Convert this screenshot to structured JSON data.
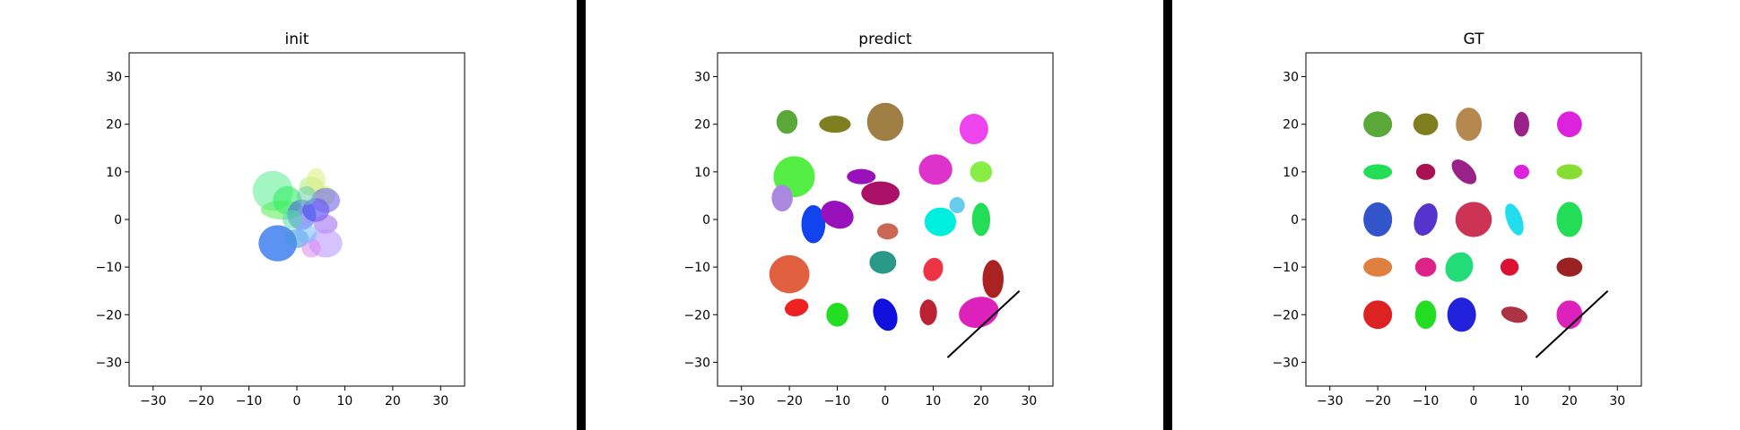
{
  "chart_data": [
    {
      "type": "scatter",
      "title": "init",
      "xlim": [
        -35,
        35
      ],
      "ylim": [
        -35,
        35
      ],
      "xticks": [
        -30,
        -20,
        -10,
        0,
        10,
        20,
        30
      ],
      "yticks": [
        -30,
        -20,
        -10,
        0,
        10,
        20,
        30
      ],
      "grid": false,
      "ellipses": [
        {
          "cx": -5,
          "cy": 6,
          "rx": 4.2,
          "ry": 4.2,
          "angle": 0,
          "color": "#66ee99",
          "opacity": 0.6
        },
        {
          "cx": -3,
          "cy": 2,
          "rx": 4.5,
          "ry": 2.0,
          "angle": 0,
          "color": "#55ee55",
          "opacity": 0.55
        },
        {
          "cx": -2,
          "cy": 4,
          "rx": 3.0,
          "ry": 3.0,
          "angle": 0,
          "color": "#33ee66",
          "opacity": 0.6
        },
        {
          "cx": 3,
          "cy": 7,
          "rx": 2.5,
          "ry": 2.0,
          "angle": 0,
          "color": "#aaee77",
          "opacity": 0.55
        },
        {
          "cx": 4,
          "cy": 8,
          "rx": 2.0,
          "ry": 2.8,
          "angle": 0,
          "color": "#ddee88",
          "opacity": 0.6
        },
        {
          "cx": 6,
          "cy": 5,
          "rx": 2.0,
          "ry": 2.0,
          "angle": 0,
          "color": "#bbee66",
          "opacity": 0.55
        },
        {
          "cx": -4,
          "cy": -5,
          "rx": 4.0,
          "ry": 3.8,
          "angle": 0,
          "color": "#3377ee",
          "opacity": 0.8
        },
        {
          "cx": 0,
          "cy": -4,
          "rx": 2.5,
          "ry": 2.0,
          "angle": 0,
          "color": "#4499dd",
          "opacity": 0.6
        },
        {
          "cx": 1,
          "cy": 1,
          "rx": 3.0,
          "ry": 3.2,
          "angle": 0,
          "color": "#5566ee",
          "opacity": 0.6
        },
        {
          "cx": 4,
          "cy": 2,
          "rx": 2.8,
          "ry": 2.5,
          "angle": 0,
          "color": "#4444ee",
          "opacity": 0.6
        },
        {
          "cx": 6,
          "cy": 4,
          "rx": 3.0,
          "ry": 2.6,
          "angle": 0,
          "color": "#7766ee",
          "opacity": 0.6
        },
        {
          "cx": 6,
          "cy": -1,
          "rx": 2.5,
          "ry": 2.0,
          "angle": 0,
          "color": "#9966ee",
          "opacity": 0.55
        },
        {
          "cx": 6,
          "cy": -5,
          "rx": 3.5,
          "ry": 3.0,
          "angle": 0,
          "color": "#bb99ff",
          "opacity": 0.6
        },
        {
          "cx": 3,
          "cy": -6,
          "rx": 2.0,
          "ry": 2.0,
          "angle": 0,
          "color": "#dd88ee",
          "opacity": 0.55
        },
        {
          "cx": 2,
          "cy": -3,
          "rx": 2.2,
          "ry": 2.0,
          "angle": 0,
          "color": "#77bbff",
          "opacity": 0.55
        },
        {
          "cx": -1,
          "cy": 0,
          "rx": 2.0,
          "ry": 2.0,
          "angle": 0,
          "color": "#55ddaa",
          "opacity": 0.55
        },
        {
          "cx": 2,
          "cy": 5,
          "rx": 2.0,
          "ry": 2.0,
          "angle": 0,
          "color": "#66ccaa",
          "opacity": 0.5
        }
      ]
    },
    {
      "type": "scatter",
      "title": "predict",
      "xlim": [
        -35,
        35
      ],
      "ylim": [
        -35,
        35
      ],
      "xticks": [
        -30,
        -20,
        -10,
        0,
        10,
        20,
        30
      ],
      "yticks": [
        -30,
        -20,
        -10,
        0,
        10,
        20,
        30
      ],
      "grid": false,
      "line": {
        "x": [
          13,
          28
        ],
        "y": [
          -29,
          -15
        ]
      },
      "ellipses": [
        {
          "cx": -20.5,
          "cy": 20.5,
          "rx": 2.2,
          "ry": 2.5,
          "angle": 0,
          "color": "#5aa83a"
        },
        {
          "cx": -10.5,
          "cy": 20,
          "rx": 3.3,
          "ry": 1.8,
          "angle": 0,
          "color": "#7f7f22"
        },
        {
          "cx": 0,
          "cy": 20.5,
          "rx": 3.8,
          "ry": 4.0,
          "angle": 0,
          "color": "#9e7e42"
        },
        {
          "cx": 18.5,
          "cy": 19,
          "rx": 3.0,
          "ry": 3.2,
          "angle": 0,
          "color": "#ee44ee"
        },
        {
          "cx": -19,
          "cy": 9,
          "rx": 4.3,
          "ry": 4.3,
          "angle": 0,
          "color": "#55ee44"
        },
        {
          "cx": -21.5,
          "cy": 4.5,
          "rx": 2.2,
          "ry": 2.8,
          "angle": 0,
          "color": "#aa88dd"
        },
        {
          "cx": -5,
          "cy": 9,
          "rx": 3.0,
          "ry": 1.6,
          "angle": 0,
          "color": "#9911bb"
        },
        {
          "cx": -1,
          "cy": 5.5,
          "rx": 4.0,
          "ry": 2.5,
          "angle": 0,
          "color": "#aa1166"
        },
        {
          "cx": 10.5,
          "cy": 10.5,
          "rx": 3.5,
          "ry": 3.2,
          "angle": 0,
          "color": "#dd33cc"
        },
        {
          "cx": 20,
          "cy": 10,
          "rx": 2.3,
          "ry": 2.2,
          "angle": 0,
          "color": "#88ee44"
        },
        {
          "cx": -15,
          "cy": -1,
          "rx": 2.5,
          "ry": 4.0,
          "angle": 0,
          "color": "#1144ee"
        },
        {
          "cx": -10,
          "cy": 1,
          "rx": 3.5,
          "ry": 2.8,
          "angle": -25,
          "color": "#9911bb"
        },
        {
          "cx": 15,
          "cy": 3,
          "rx": 1.6,
          "ry": 1.7,
          "angle": 0,
          "color": "#66ccee"
        },
        {
          "cx": 11.5,
          "cy": -0.5,
          "rx": 3.3,
          "ry": 3.0,
          "angle": 0,
          "color": "#00eedd"
        },
        {
          "cx": 20,
          "cy": 0,
          "rx": 1.9,
          "ry": 3.5,
          "angle": 0,
          "color": "#22dd55"
        },
        {
          "cx": 0.5,
          "cy": -2.5,
          "rx": 2.2,
          "ry": 1.7,
          "angle": 0,
          "color": "#cc6655"
        },
        {
          "cx": -20,
          "cy": -11.5,
          "rx": 4.2,
          "ry": 4.0,
          "angle": 0,
          "color": "#e06040"
        },
        {
          "cx": -0.5,
          "cy": -9,
          "rx": 2.8,
          "ry": 2.4,
          "angle": 0,
          "color": "#2a9988"
        },
        {
          "cx": 10,
          "cy": -10.5,
          "rx": 2.0,
          "ry": 2.5,
          "angle": -20,
          "color": "#ee3344"
        },
        {
          "cx": 22.5,
          "cy": -12.5,
          "rx": 2.2,
          "ry": 4.0,
          "angle": 0,
          "color": "#aa2222"
        },
        {
          "cx": -18.5,
          "cy": -18.5,
          "rx": 2.5,
          "ry": 1.8,
          "angle": 15,
          "color": "#ee2222"
        },
        {
          "cx": -10,
          "cy": -20,
          "rx": 2.3,
          "ry": 2.5,
          "angle": 0,
          "color": "#22dd22"
        },
        {
          "cx": 0,
          "cy": -20,
          "rx": 2.4,
          "ry": 3.5,
          "angle": 20,
          "color": "#1111dd"
        },
        {
          "cx": 9,
          "cy": -19.5,
          "rx": 1.8,
          "ry": 2.7,
          "angle": 0,
          "color": "#bb2233"
        },
        {
          "cx": 19.5,
          "cy": -19.5,
          "rx": 4.2,
          "ry": 3.2,
          "angle": 15,
          "color": "#dd22bb"
        }
      ]
    },
    {
      "type": "scatter",
      "title": "GT",
      "xlim": [
        -35,
        35
      ],
      "ylim": [
        -35,
        35
      ],
      "xticks": [
        -30,
        -20,
        -10,
        0,
        10,
        20,
        30
      ],
      "yticks": [
        -30,
        -20,
        -10,
        0,
        10,
        20,
        30
      ],
      "grid": false,
      "line": {
        "x": [
          13,
          28
        ],
        "y": [
          -29,
          -15
        ]
      },
      "ellipses": [
        {
          "cx": -20,
          "cy": 20,
          "rx": 3.0,
          "ry": 2.7,
          "angle": 0,
          "color": "#5aa83a"
        },
        {
          "cx": -10,
          "cy": 20,
          "rx": 2.6,
          "ry": 2.3,
          "angle": 0,
          "color": "#7f7f22"
        },
        {
          "cx": -1,
          "cy": 20,
          "rx": 2.7,
          "ry": 3.5,
          "angle": 0,
          "color": "#b58850"
        },
        {
          "cx": 10,
          "cy": 20,
          "rx": 1.6,
          "ry": 2.6,
          "angle": 0,
          "color": "#992288"
        },
        {
          "cx": 20,
          "cy": 20,
          "rx": 2.6,
          "ry": 2.7,
          "angle": 0,
          "color": "#dd22dd"
        },
        {
          "cx": -20,
          "cy": 10,
          "rx": 3.0,
          "ry": 1.6,
          "angle": 0,
          "color": "#22dd55"
        },
        {
          "cx": -10,
          "cy": 10,
          "rx": 2.0,
          "ry": 1.7,
          "angle": 0,
          "color": "#aa1155"
        },
        {
          "cx": -2,
          "cy": 10,
          "rx": 1.8,
          "ry": 3.2,
          "angle": 45,
          "color": "#992288"
        },
        {
          "cx": 10,
          "cy": 10,
          "rx": 1.6,
          "ry": 1.5,
          "angle": 0,
          "color": "#dd22dd"
        },
        {
          "cx": 20,
          "cy": 10,
          "rx": 2.7,
          "ry": 1.6,
          "angle": 0,
          "color": "#88dd33"
        },
        {
          "cx": -20,
          "cy": 0,
          "rx": 3.0,
          "ry": 3.6,
          "angle": 0,
          "color": "#3355cc"
        },
        {
          "cx": -10,
          "cy": 0,
          "rx": 2.3,
          "ry": 3.5,
          "angle": -20,
          "color": "#5533cc"
        },
        {
          "cx": 0,
          "cy": 0,
          "rx": 3.8,
          "ry": 3.7,
          "angle": 0,
          "color": "#cc3355"
        },
        {
          "cx": 8.5,
          "cy": 0,
          "rx": 1.6,
          "ry": 3.5,
          "angle": 20,
          "color": "#22ddee"
        },
        {
          "cx": 20,
          "cy": 0,
          "rx": 2.7,
          "ry": 3.7,
          "angle": 0,
          "color": "#22dd55"
        },
        {
          "cx": -20,
          "cy": -10,
          "rx": 3.0,
          "ry": 2.0,
          "angle": 0,
          "color": "#e08040"
        },
        {
          "cx": -10,
          "cy": -10,
          "rx": 2.2,
          "ry": 2.0,
          "angle": 0,
          "color": "#dd2288"
        },
        {
          "cx": -3,
          "cy": -10,
          "rx": 2.8,
          "ry": 3.2,
          "angle": -30,
          "color": "#22dd77"
        },
        {
          "cx": 7.5,
          "cy": -10,
          "rx": 1.9,
          "ry": 1.8,
          "angle": 0,
          "color": "#dd1133"
        },
        {
          "cx": 20,
          "cy": -10,
          "rx": 2.7,
          "ry": 2.0,
          "angle": 0,
          "color": "#992222"
        },
        {
          "cx": -20,
          "cy": -20,
          "rx": 3.0,
          "ry": 3.0,
          "angle": 0,
          "color": "#dd2222"
        },
        {
          "cx": -10,
          "cy": -20,
          "rx": 2.2,
          "ry": 3.0,
          "angle": 0,
          "color": "#22dd22"
        },
        {
          "cx": -2.5,
          "cy": -20,
          "rx": 3.0,
          "ry": 3.6,
          "angle": 0,
          "color": "#2222dd"
        },
        {
          "cx": 8.5,
          "cy": -20,
          "rx": 2.8,
          "ry": 1.6,
          "angle": -15,
          "color": "#aa3344"
        },
        {
          "cx": 20,
          "cy": -20,
          "rx": 2.7,
          "ry": 3.0,
          "angle": 0,
          "color": "#dd22bb"
        }
      ]
    }
  ],
  "separator_color": "#000000",
  "line_color": "#000000"
}
